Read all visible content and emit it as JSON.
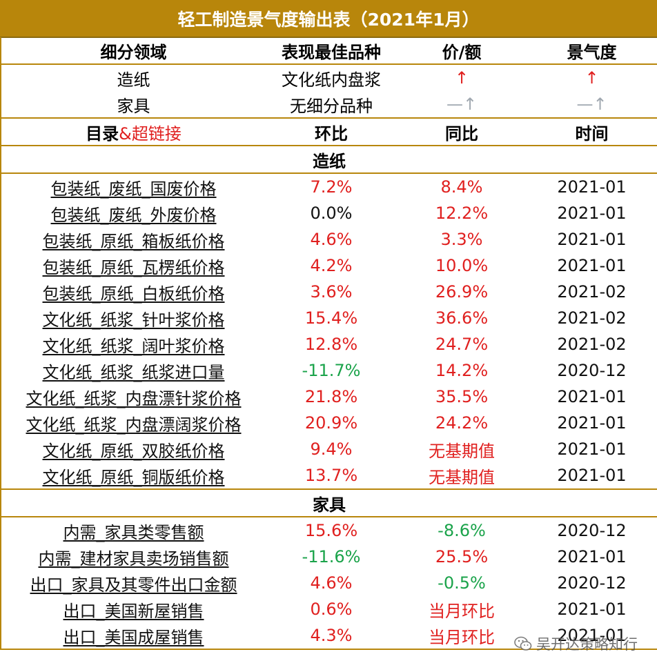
{
  "title": "轻工制造景气度输出表（2021年1月）",
  "summary_header": [
    "细分领域",
    "表现最佳品种",
    "价/额",
    "景气度"
  ],
  "summary_rows": [
    {
      "field": "造纸",
      "best": "文化纸内盘浆",
      "price": "↑",
      "price_color": "red",
      "climate": "↑",
      "climate_color": "red"
    },
    {
      "field": "家具",
      "best": "无细分品种",
      "price": "—↑",
      "price_color": "grey",
      "climate": "—↑",
      "climate_color": "grey"
    }
  ],
  "detail_header": {
    "catalog": "目录",
    "link_suffix": "&超链接",
    "mom": "环比",
    "yoy": "同比",
    "time": "时间"
  },
  "sections": [
    {
      "name": "造纸",
      "rows": [
        {
          "name": "包装纸_废纸_国废价格",
          "mom": "7.2%",
          "mom_color": "red",
          "yoy": "8.4%",
          "yoy_color": "red",
          "time": "2021-01"
        },
        {
          "name": "包装纸_废纸_外废价格",
          "mom": "0.0%",
          "mom_color": "black",
          "yoy": "12.2%",
          "yoy_color": "red",
          "time": "2021-01"
        },
        {
          "name": "包装纸_原纸_箱板纸价格",
          "mom": "4.6%",
          "mom_color": "red",
          "yoy": "3.3%",
          "yoy_color": "red",
          "time": "2021-01"
        },
        {
          "name": "包装纸_原纸_瓦楞纸价格",
          "mom": "4.2%",
          "mom_color": "red",
          "yoy": "10.0%",
          "yoy_color": "red",
          "time": "2021-01"
        },
        {
          "name": "包装纸_原纸_白板纸价格",
          "mom": "3.6%",
          "mom_color": "red",
          "yoy": "26.9%",
          "yoy_color": "red",
          "time": "2021-02"
        },
        {
          "name": "文化纸_纸浆_针叶浆价格",
          "mom": "15.4%",
          "mom_color": "red",
          "yoy": "36.6%",
          "yoy_color": "red",
          "time": "2021-02"
        },
        {
          "name": "文化纸_纸浆_阔叶浆价格",
          "mom": "12.8%",
          "mom_color": "red",
          "yoy": "24.7%",
          "yoy_color": "red",
          "time": "2021-02"
        },
        {
          "name": "文化纸_纸浆_纸浆进口量",
          "mom": "-11.7%",
          "mom_color": "green",
          "yoy": "14.2%",
          "yoy_color": "red",
          "time": "2020-12"
        },
        {
          "name": "文化纸_纸浆_内盘漂针浆价格",
          "mom": "21.8%",
          "mom_color": "red",
          "yoy": "35.5%",
          "yoy_color": "red",
          "time": "2021-01"
        },
        {
          "name": "文化纸_纸浆_内盘漂阔浆价格",
          "mom": "20.9%",
          "mom_color": "red",
          "yoy": "24.2%",
          "yoy_color": "red",
          "time": "2021-01"
        },
        {
          "name": "文化纸_原纸_双胶纸价格",
          "mom": "9.4%",
          "mom_color": "red",
          "yoy": "无基期值",
          "yoy_color": "red",
          "time": "2021-01"
        },
        {
          "name": "文化纸_原纸_铜版纸价格",
          "mom": "13.7%",
          "mom_color": "red",
          "yoy": "无基期值",
          "yoy_color": "red",
          "time": "2021-01"
        }
      ]
    },
    {
      "name": "家具",
      "rows": [
        {
          "name": "内需_家具类零售额",
          "mom": "15.6%",
          "mom_color": "red",
          "yoy": "-8.6%",
          "yoy_color": "green",
          "time": "2020-12"
        },
        {
          "name": "内需_建材家具卖场销售额",
          "mom": "-11.6%",
          "mom_color": "green",
          "yoy": "25.5%",
          "yoy_color": "red",
          "time": "2021-01"
        },
        {
          "name": "出口_家具及其零件出口金额",
          "mom": "4.6%",
          "mom_color": "red",
          "yoy": "-0.5%",
          "yoy_color": "green",
          "time": "2020-12"
        },
        {
          "name": "出口_美国新屋销售",
          "mom": "0.6%",
          "mom_color": "red",
          "yoy": "当月环比",
          "yoy_color": "red",
          "time": "2021-01"
        },
        {
          "name": "出口_美国成屋销售",
          "mom": "4.3%",
          "mom_color": "red",
          "yoy": "当月环比",
          "yoy_color": "red",
          "time": "2021-01"
        }
      ]
    }
  ],
  "watermark": "吴开达策略知行",
  "watermark_icon": "wechat-icon"
}
